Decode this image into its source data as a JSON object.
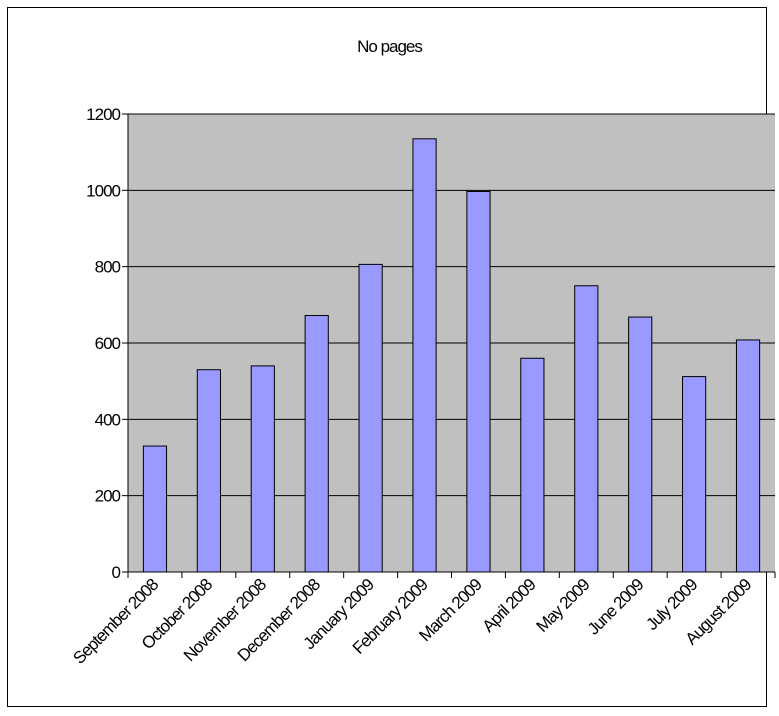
{
  "chart_data": {
    "type": "bar",
    "title": "No pages",
    "categories": [
      "September 2008",
      "October 2008",
      "November 2008",
      "December 2008",
      "January 2009",
      "February 2009",
      "March 2009",
      "April 2009",
      "May 2009",
      "June 2009",
      "July 2009",
      "August 2009"
    ],
    "values": [
      330,
      530,
      540,
      672,
      806,
      1135,
      997,
      560,
      750,
      668,
      512,
      608
    ],
    "ylim": [
      0,
      1200
    ],
    "yticks": [
      "0",
      "200",
      "400",
      "600",
      "800",
      "1000",
      "1200"
    ],
    "grid": true,
    "colors": {
      "plot_bg": "#C0C0C0",
      "bar": "#9999FF",
      "bar_stroke": "#000000"
    }
  }
}
